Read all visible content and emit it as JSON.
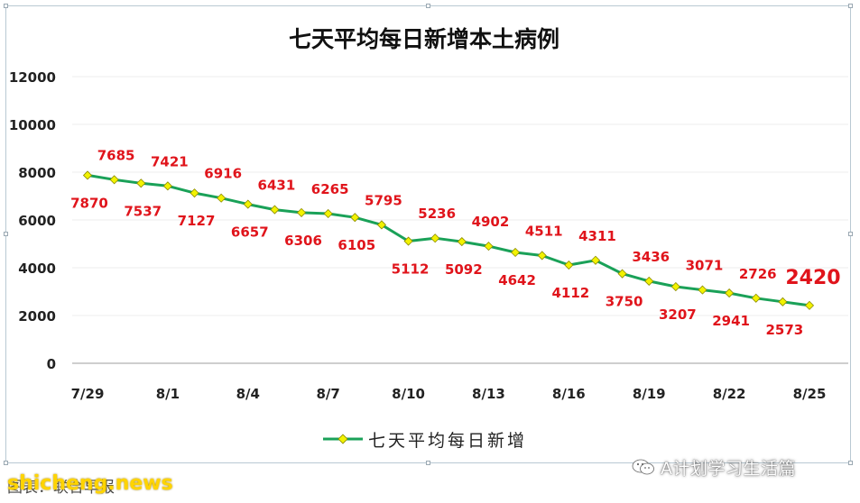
{
  "chart_data": {
    "type": "line",
    "title": "七天平均每日新增本土病例",
    "x": [
      "7/29",
      "7/30",
      "7/31",
      "8/1",
      "8/2",
      "8/3",
      "8/4",
      "8/5",
      "8/6",
      "8/7",
      "8/8",
      "8/9",
      "8/10",
      "8/11",
      "8/12",
      "8/13",
      "8/14",
      "8/15",
      "8/16",
      "8/17",
      "8/18",
      "8/19",
      "8/20",
      "8/21",
      "8/22",
      "8/23",
      "8/24",
      "8/25"
    ],
    "x_tick_labels": [
      "7/29",
      "8/1",
      "8/4",
      "8/7",
      "8/10",
      "8/13",
      "8/16",
      "8/19",
      "8/22",
      "8/25"
    ],
    "series": [
      {
        "name": "七天平均每日新增",
        "values": [
          7870,
          7685,
          7537,
          7421,
          7127,
          6916,
          6657,
          6431,
          6306,
          6265,
          6105,
          5795,
          5112,
          5236,
          5092,
          4902,
          4642,
          4511,
          4112,
          4311,
          3750,
          3436,
          3207,
          3071,
          2941,
          2726,
          2573,
          2420
        ],
        "color": "#1aa158",
        "marker_color": "#f2f200"
      }
    ],
    "data_labels": [
      "7870",
      "7685",
      "7537",
      "7421",
      "7127",
      "6916",
      "6657",
      "6431",
      "6306",
      "6265",
      "6105",
      "5795",
      "5112",
      "5236",
      "5092",
      "4902",
      "4642",
      "4511",
      "4112",
      "4311",
      "3750",
      "3436",
      "3207",
      "3071",
      "2941",
      "2726",
      "2573",
      "2420"
    ],
    "label_color": "#e0141b",
    "ylim": [
      0,
      12000
    ],
    "y_ticks": [
      "0",
      "2000",
      "4000",
      "6000",
      "8000",
      "10000",
      "12000"
    ],
    "xlabel": "",
    "ylabel": "",
    "grid": true,
    "legend": "bottom"
  },
  "footer": {
    "credit": "图表：联合早报",
    "watermark": "shicheng.news",
    "wechat_account": "A计划学习生活篇",
    "wechat_icon": "wechat-icon"
  }
}
